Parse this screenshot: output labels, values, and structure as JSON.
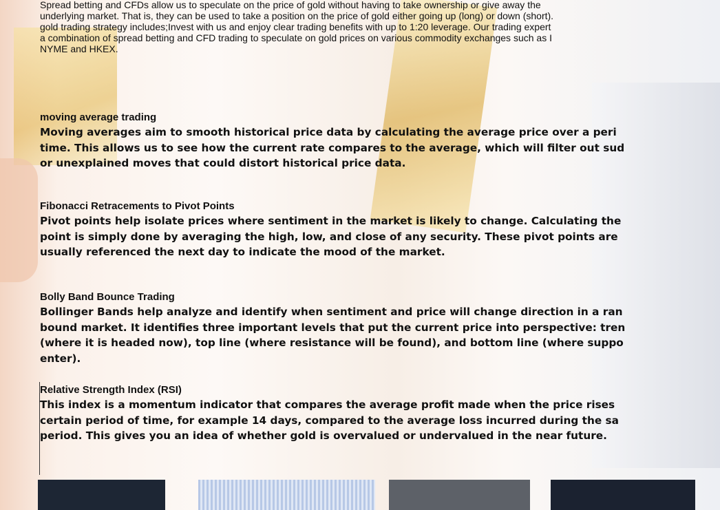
{
  "intro": {
    "lines": [
      "Spread betting and CFDs allow us to speculate on the price of gold without having to take ownership or give away the",
      "underlying market. That is, they can be used to take a position on the price of gold either going up (long) or down (short).",
      "gold trading strategy includes;Invest with us and enjoy clear trading benefits with up to 1:20 leverage. Our trading expert",
      "a combination of spread betting and CFD trading to speculate on gold prices on various commodity exchanges such as I",
      "NYME and HKEX."
    ]
  },
  "sections": [
    {
      "heading": "moving average trading",
      "lines": [
        "Moving averages aim to smooth historical price data by calculating the average price over a peri",
        "time. This allows us to see how the current rate compares to the average, which will filter out sud",
        "or unexplained moves that could distort historical price data."
      ]
    },
    {
      "heading": "Fibonacci Retracements to Pivot Points",
      "lines": [
        "Pivot points help isolate prices where sentiment in the market is likely to change. Calculating the",
        "point is simply done by averaging the high, low, and close of any security. These pivot points are",
        "usually referenced the next day to indicate the mood of the market."
      ]
    },
    {
      "heading": "Bolly Band Bounce Trading",
      "lines": [
        "Bollinger Bands help analyze and identify when sentiment and price will change direction in a ran",
        "bound market. It identifies three important levels that put the current price into perspective: tren",
        "(where it is headed now), top line (where resistance will be found), and bottom line (where suppo",
        "enter)."
      ]
    },
    {
      "heading": "Relative Strength Index (RSI)",
      "lines": [
        "This index is a momentum indicator that compares the average profit made when the price rises",
        "certain period of time, for example 14 days, compared to the average loss incurred during the sa",
        "period. This gives you an idea of whether gold is overvalued or undervalued in the near future."
      ]
    }
  ]
}
